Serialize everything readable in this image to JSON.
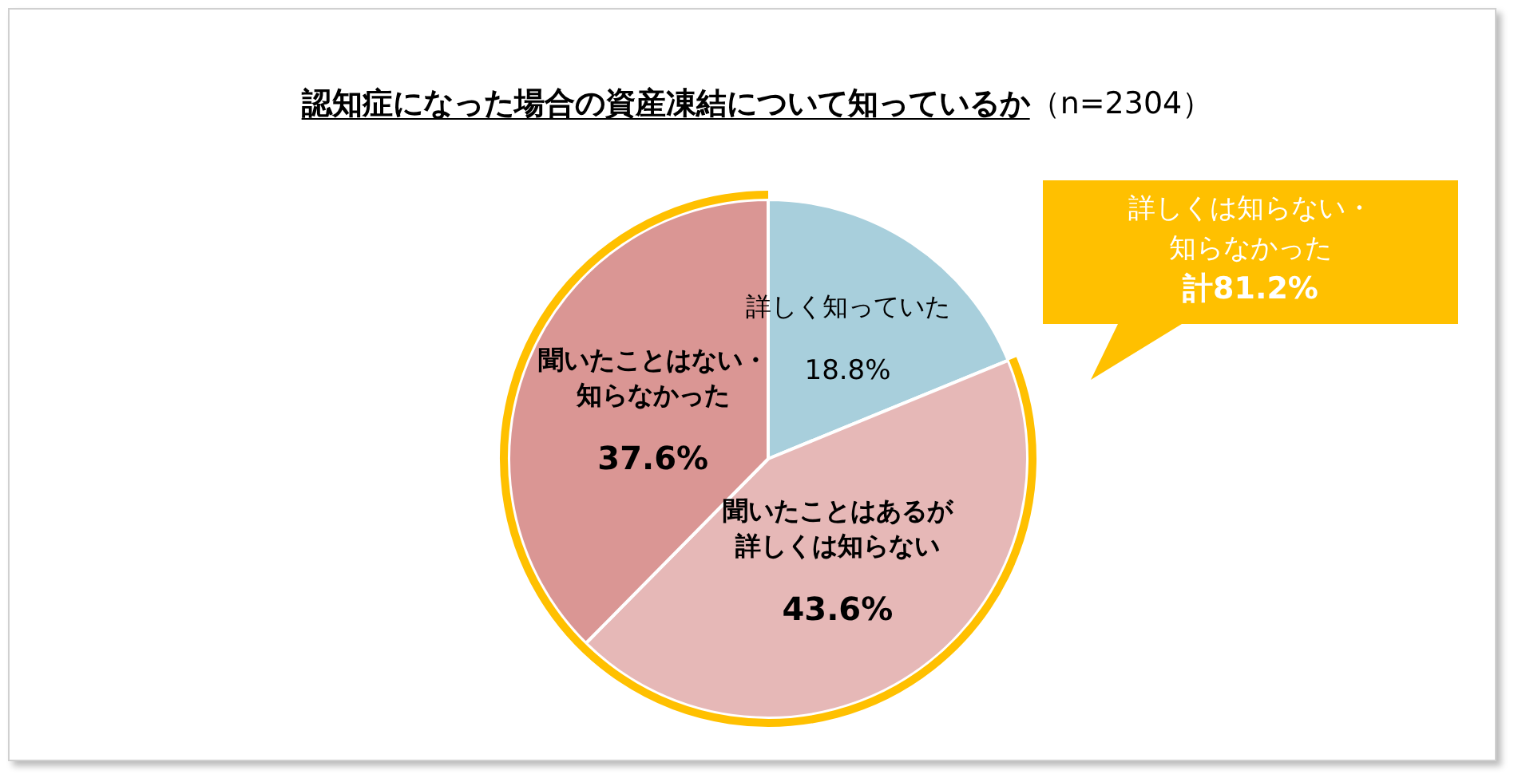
{
  "chart_data": {
    "type": "pie",
    "title": "認知症になった場合の資産凍結について知っているか",
    "subtitle": "（n=2304）",
    "categories": [
      "詳しく知っていた",
      "聞いたことはあるが詳しくは知らない",
      "聞いたことはない・知らなかった"
    ],
    "values": [
      18.8,
      43.6,
      37.6
    ],
    "value_labels": [
      "18.8%",
      "43.6%",
      "37.6%"
    ],
    "colors": [
      "#a8cfdc",
      "#e6b8b7",
      "#da9694"
    ],
    "annotations": [
      "詳しくは知らない・知らなかった",
      "計81.2%"
    ],
    "legend": false
  }
}
